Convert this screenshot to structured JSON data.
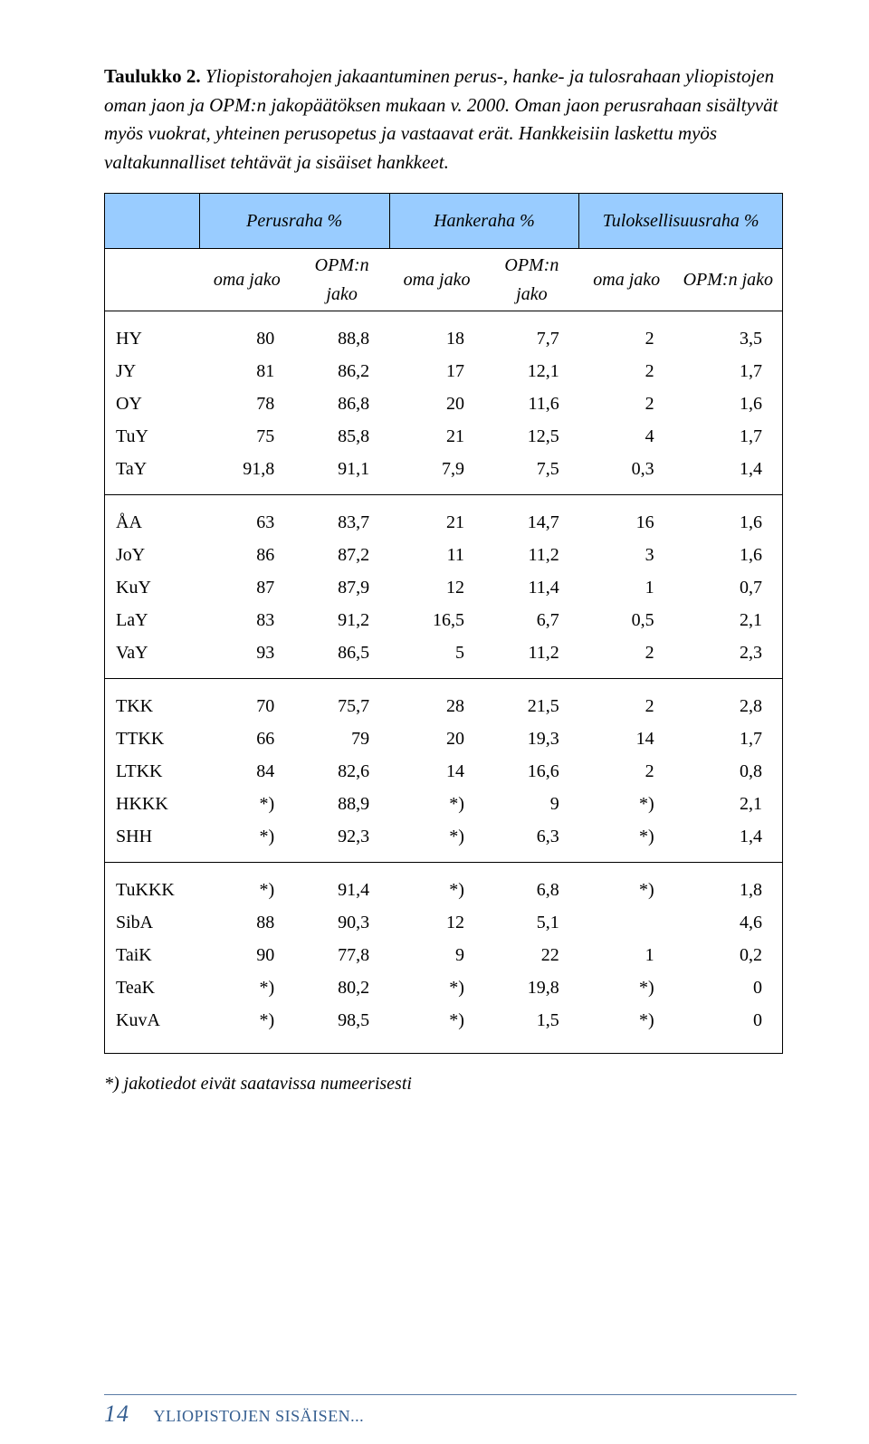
{
  "caption": {
    "bold": "Taulukko 2.",
    "italic": " Yliopistorahojen jakaantuminen perus-, hanke- ja tulosrahaan yliopistojen oman jaon ja OPM:n jakopäätöksen mukaan v. 2000. Oman jaon perusrahaan sisältyvät myös vuokrat, yhteinen perusopetus ja vastaavat erät. Hankkeisiin laskettu myös valtakunnalliset tehtävät ja sisäiset hankkeet."
  },
  "table": {
    "groupHeaders": [
      "Perusraha %",
      "Hankeraha %",
      "Tuloksellisuusraha %"
    ],
    "subHeaders": [
      "oma jako",
      "OPM:n jako",
      "oma jako",
      "OPM:n jako",
      "oma jako",
      "OPM:n jako"
    ],
    "groups": [
      [
        {
          "label": "HY",
          "cells": [
            "80",
            "88,8",
            "18",
            "7,7",
            "2",
            "3,5"
          ]
        },
        {
          "label": "JY",
          "cells": [
            "81",
            "86,2",
            "17",
            "12,1",
            "2",
            "1,7"
          ]
        },
        {
          "label": "OY",
          "cells": [
            "78",
            "86,8",
            "20",
            "11,6",
            "2",
            "1,6"
          ]
        },
        {
          "label": "TuY",
          "cells": [
            "75",
            "85,8",
            "21",
            "12,5",
            "4",
            "1,7"
          ]
        },
        {
          "label": "TaY",
          "cells": [
            "91,8",
            "91,1",
            "7,9",
            "7,5",
            "0,3",
            "1,4"
          ]
        }
      ],
      [
        {
          "label": "ÅA",
          "cells": [
            "63",
            "83,7",
            "21",
            "14,7",
            "16",
            "1,6"
          ]
        },
        {
          "label": "JoY",
          "cells": [
            "86",
            "87,2",
            "11",
            "11,2",
            "3",
            "1,6"
          ]
        },
        {
          "label": "KuY",
          "cells": [
            "87",
            "87,9",
            "12",
            "11,4",
            "1",
            "0,7"
          ]
        },
        {
          "label": "LaY",
          "cells": [
            "83",
            "91,2",
            "16,5",
            "6,7",
            "0,5",
            "2,1"
          ]
        },
        {
          "label": "VaY",
          "cells": [
            "93",
            "86,5",
            "5",
            "11,2",
            "2",
            "2,3"
          ]
        }
      ],
      [
        {
          "label": "TKK",
          "cells": [
            "70",
            "75,7",
            "28",
            "21,5",
            "2",
            "2,8"
          ]
        },
        {
          "label": "TTKK",
          "cells": [
            "66",
            "79",
            "20",
            "19,3",
            "14",
            "1,7"
          ]
        },
        {
          "label": "LTKK",
          "cells": [
            "84",
            "82,6",
            "14",
            "16,6",
            "2",
            "0,8"
          ]
        },
        {
          "label": "HKKK",
          "cells": [
            "*)",
            "88,9",
            "*)",
            "9",
            "*)",
            "2,1"
          ]
        },
        {
          "label": "SHH",
          "cells": [
            "*)",
            "92,3",
            "*)",
            "6,3",
            "*)",
            "1,4"
          ]
        }
      ],
      [
        {
          "label": "TuKKK",
          "cells": [
            "*)",
            "91,4",
            "*)",
            "6,8",
            "*)",
            "1,8"
          ]
        },
        {
          "label": "SibA",
          "cells": [
            "88",
            "90,3",
            "12",
            "5,1",
            "",
            "4,6"
          ]
        },
        {
          "label": "TaiK",
          "cells": [
            "90",
            "77,8",
            "9",
            "22",
            "1",
            "0,2"
          ]
        },
        {
          "label": "TeaK",
          "cells": [
            "*)",
            "80,2",
            "*)",
            "19,8",
            "*)",
            "0"
          ]
        },
        {
          "label": "KuvA",
          "cells": [
            "*)",
            "98,5",
            "*)",
            "1,5",
            "*)",
            "0"
          ]
        }
      ]
    ]
  },
  "footnote": "*) jakotiedot eivät saatavissa numeerisesti",
  "footer": {
    "pageNumber": "14",
    "title": "YLIOPISTOJEN SISÄISEN..."
  }
}
